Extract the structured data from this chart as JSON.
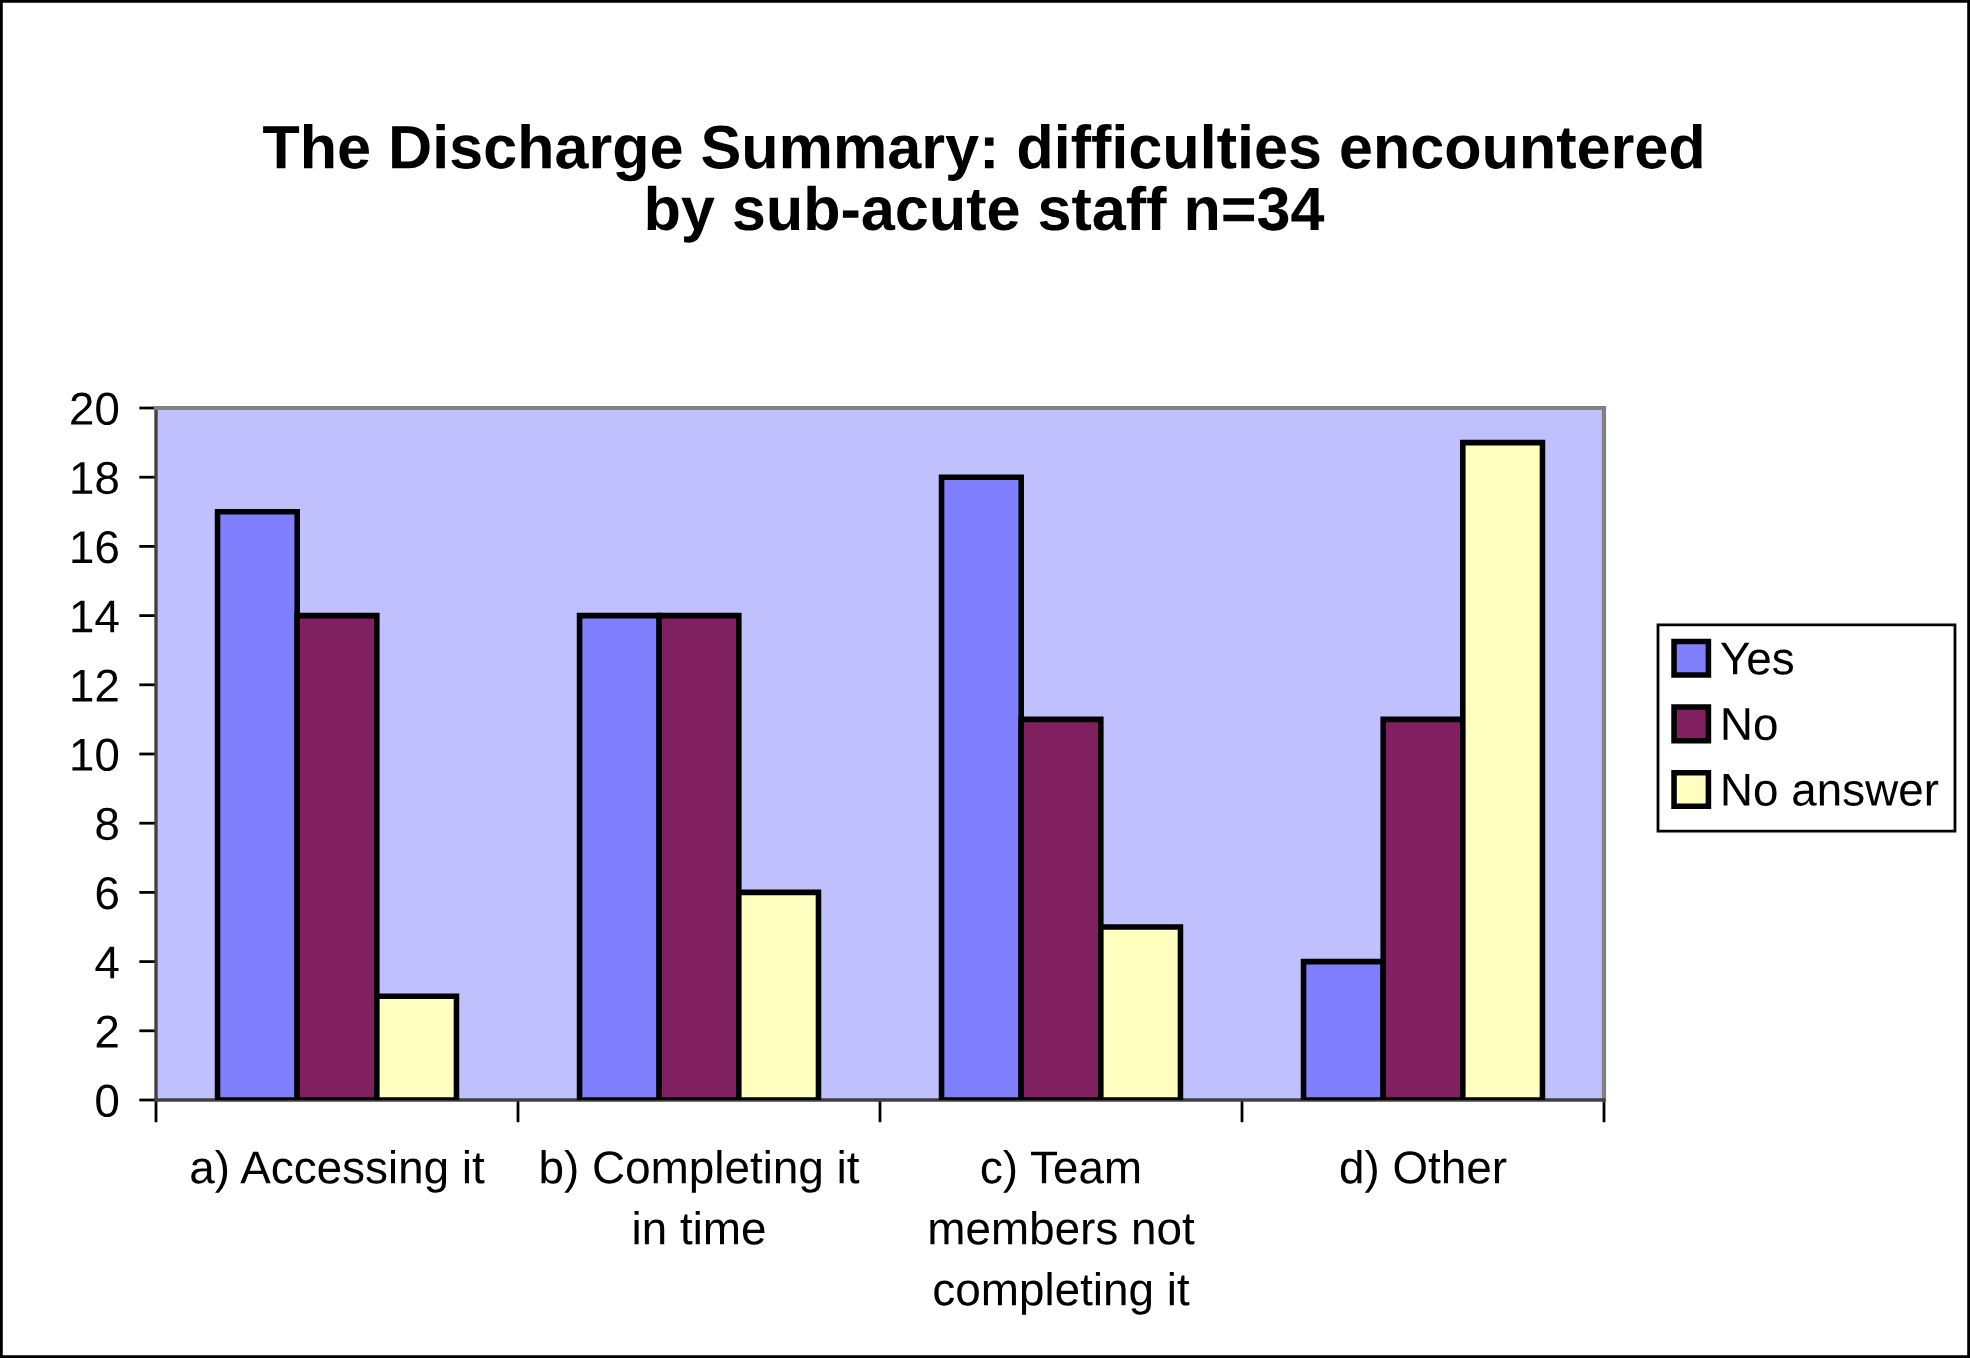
{
  "chart_data": {
    "type": "bar",
    "title": "The Discharge Summary: difficulties encountered\nby sub-acute staff n=34",
    "categories": [
      "a) Accessing it",
      "b) Completing it\nin time",
      "c) Team\nmembers not\ncompleting it",
      "d) Other"
    ],
    "series": [
      {
        "name": "Yes",
        "color": "#8080ff",
        "values": [
          17,
          14,
          18,
          4
        ]
      },
      {
        "name": "No",
        "color": "#802060",
        "values": [
          14,
          14,
          11,
          11
        ]
      },
      {
        "name": "No answer",
        "color": "#ffffc0",
        "values": [
          3,
          6,
          5,
          19
        ]
      }
    ],
    "ylim": [
      0,
      20
    ],
    "yticks": [
      0,
      2,
      4,
      6,
      8,
      10,
      12,
      14,
      16,
      18,
      20
    ],
    "grid": false,
    "legend": "right"
  }
}
